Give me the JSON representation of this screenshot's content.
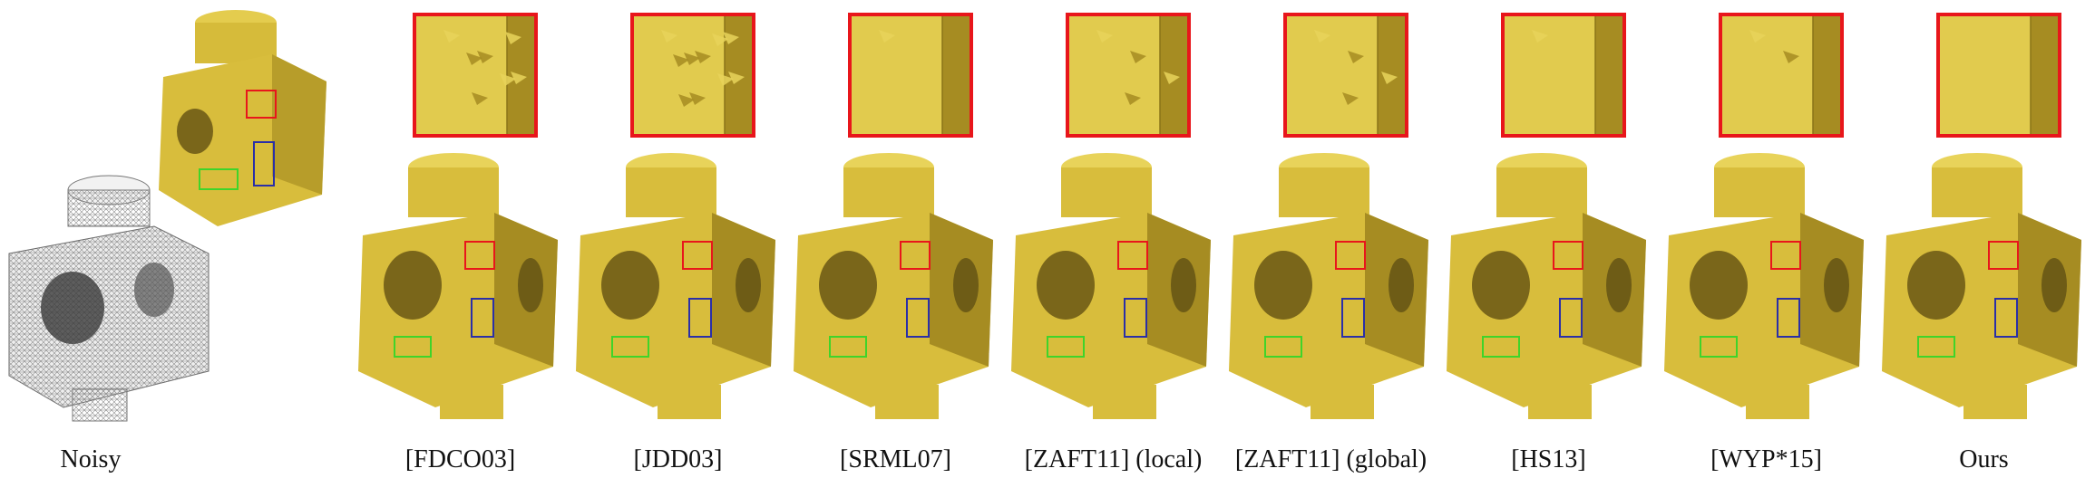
{
  "colors": {
    "surface": "#d8bd3c",
    "surface_light": "#e8d35a",
    "surface_dark": "#a68c22",
    "mesh": "#9a9a9a",
    "box_red": "#e8161b",
    "box_blue": "#2a2fa8",
    "box_green": "#3fd42a"
  },
  "figure": {
    "labels": [
      "Noisy",
      "[FDCO03]",
      "[JDD03]",
      "[SRML07]",
      "[ZAFT11] (local)",
      "[ZAFT11] (global)",
      "[HS13]",
      "[WYP*15]",
      "Ours"
    ]
  }
}
